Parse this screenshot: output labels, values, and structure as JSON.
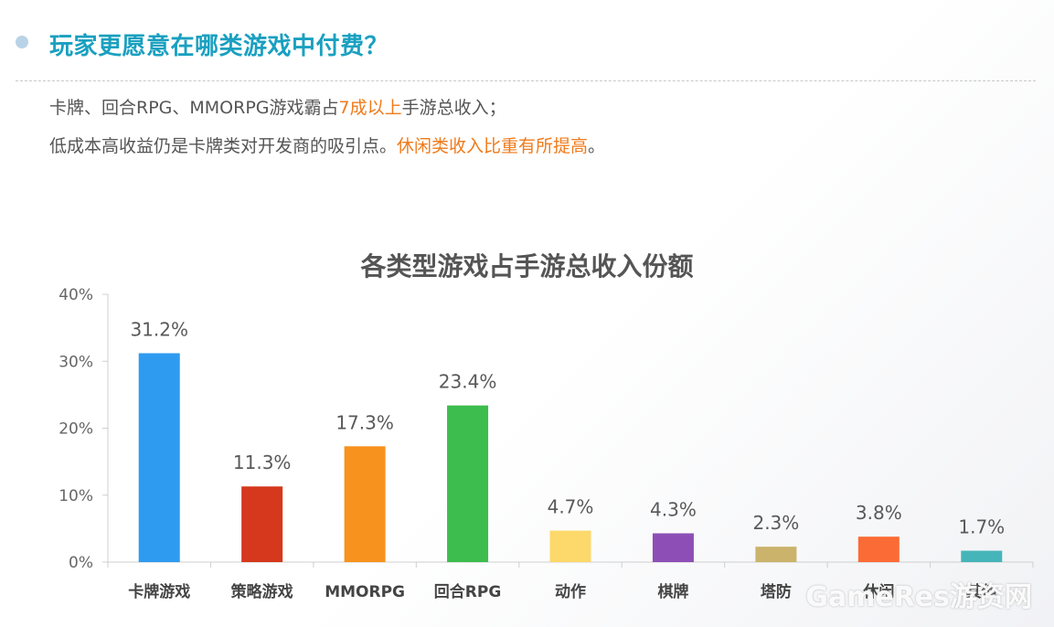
{
  "header": {
    "title": "玩家更愿意在哪类游戏中付费？"
  },
  "description": {
    "line1": {
      "before": "卡牌、回合RPG、MMORPG游戏霸占",
      "highlight": "7成以上",
      "after": "手游总收入；"
    },
    "line2": {
      "before": "低成本高收益仍是卡牌类对开发商的吸引点。",
      "highlight": "休闲类收入比重有所提高",
      "after": "。"
    },
    "highlight_color": "#f07a1a"
  },
  "chart_data": {
    "type": "bar",
    "title": "各类型游戏占手游总收入份额",
    "xlabel": "",
    "ylabel": "",
    "ylim": [
      0,
      40
    ],
    "y_ticks": [
      "0%",
      "10%",
      "20%",
      "30%",
      "40%"
    ],
    "y_tick_values": [
      0,
      10,
      20,
      30,
      40
    ],
    "categories": [
      "卡牌游戏",
      "策略游戏",
      "MMORPG",
      "回合RPG",
      "动作",
      "棋牌",
      "塔防",
      "休闲",
      "其他"
    ],
    "values": [
      31.2,
      11.3,
      17.3,
      23.4,
      4.7,
      4.3,
      2.3,
      3.8,
      1.7
    ],
    "value_labels": [
      "31.2%",
      "11.3%",
      "17.3%",
      "23.4%",
      "4.7%",
      "4.3%",
      "2.3%",
      "3.8%",
      "1.7%"
    ],
    "colors": [
      "#2e9bf0",
      "#d5381c",
      "#f7921e",
      "#3dbd4e",
      "#fdd86a",
      "#8d4fb5",
      "#cbb36c",
      "#fb6b35",
      "#46b5ba"
    ],
    "grid": false,
    "legend": "none"
  },
  "watermark": "GameRes游资网"
}
